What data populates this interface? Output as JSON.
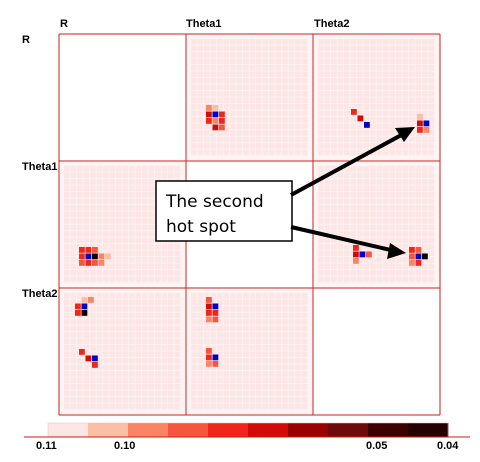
{
  "chart_data": {
    "type": "heatmap",
    "variables": [
      "R",
      "Theta1",
      "Theta2"
    ],
    "diagonal_empty": true,
    "legend": {
      "position": "bottom",
      "tick_labels": [
        "0.11",
        "0.10",
        "0.05",
        "0.04"
      ],
      "colors": [
        "#fde6e6",
        "#fbbfa4",
        "#f98466",
        "#f5563d",
        "#f0261a",
        "#d10a0a",
        "#990000",
        "#6e0a0a",
        "#3d0000",
        "#240000"
      ]
    },
    "highlight_color": "#0000c8",
    "annotation": {
      "line1": "The second",
      "line2": "hot spot"
    },
    "panels": [
      {
        "row": 0,
        "col": 1,
        "spots": [
          [
            [
              0,
              0,
              2
            ],
            [
              0,
              1,
              1
            ],
            [
              1,
              0,
              5
            ],
            [
              1,
              1,
              9
            ],
            [
              1,
              2,
              4
            ],
            [
              2,
              0,
              4
            ],
            [
              2,
              1,
              2
            ],
            [
              2,
              2,
              4
            ],
            [
              3,
              1,
              5
            ],
            [
              3,
              2,
              3
            ]
          ]
        ]
      },
      {
        "row": 0,
        "col": 2,
        "spots": [
          [
            [
              0,
              0,
              4
            ],
            [
              1,
              1,
              5
            ],
            [
              2,
              2,
              9
            ]
          ],
          [
            [
              0,
              0,
              1
            ],
            [
              1,
              0,
              5
            ],
            [
              1,
              1,
              9
            ],
            [
              2,
              0,
              4
            ],
            [
              2,
              1,
              2
            ]
          ]
        ]
      },
      {
        "row": 1,
        "col": 0,
        "spots": [
          [
            [
              0,
              0,
              4
            ],
            [
              0,
              1,
              4
            ],
            [
              0,
              2,
              3
            ],
            [
              1,
              0,
              4
            ],
            [
              1,
              1,
              9
            ],
            [
              1,
              2,
              9
            ],
            [
              1,
              3,
              2
            ],
            [
              1,
              4,
              1
            ],
            [
              2,
              0,
              3
            ],
            [
              2,
              1,
              4
            ],
            [
              2,
              2,
              3
            ],
            [
              2,
              3,
              2
            ]
          ]
        ]
      },
      {
        "row": 1,
        "col": 2,
        "spots": [
          [
            [
              0,
              0,
              4
            ],
            [
              1,
              0,
              5
            ],
            [
              1,
              1,
              9
            ],
            [
              1,
              2,
              3
            ],
            [
              2,
              0,
              2
            ]
          ],
          [
            [
              0,
              0,
              4
            ],
            [
              0,
              1,
              3
            ],
            [
              1,
              0,
              3
            ],
            [
              1,
              1,
              9
            ],
            [
              1,
              2,
              9
            ],
            [
              2,
              0,
              2
            ],
            [
              2,
              1,
              4
            ]
          ]
        ]
      },
      {
        "row": 2,
        "col": 0,
        "spots": [
          [
            [
              0,
              2,
              2
            ],
            [
              0,
              1,
              1
            ],
            [
              1,
              0,
              4
            ],
            [
              1,
              1,
              9
            ],
            [
              2,
              0,
              4
            ],
            [
              2,
              1,
              9
            ]
          ],
          [
            [
              0,
              0,
              4
            ],
            [
              1,
              1,
              5
            ],
            [
              1,
              2,
              9
            ],
            [
              2,
              2,
              4
            ]
          ]
        ]
      },
      {
        "row": 2,
        "col": 1,
        "spots": [
          [
            [
              0,
              0,
              3
            ],
            [
              1,
              0,
              5
            ],
            [
              1,
              1,
              9
            ],
            [
              2,
              0,
              4
            ],
            [
              2,
              1,
              4
            ],
            [
              3,
              0,
              2
            ],
            [
              3,
              1,
              3
            ]
          ],
          [
            [
              0,
              0,
              3
            ],
            [
              1,
              0,
              4
            ],
            [
              1,
              1,
              9
            ],
            [
              2,
              0,
              2
            ],
            [
              2,
              1,
              3
            ]
          ]
        ]
      }
    ]
  }
}
